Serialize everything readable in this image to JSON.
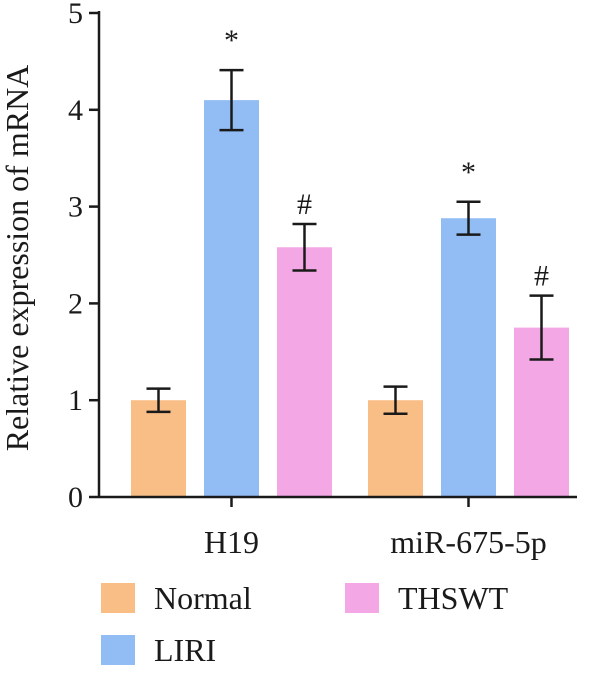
{
  "chart_data": {
    "type": "bar",
    "title": "",
    "xlabel": "",
    "ylabel": "Relative expression of mRNA",
    "ylim": [
      0,
      5
    ],
    "yticks": [
      0,
      1,
      2,
      3,
      4,
      5
    ],
    "grid": false,
    "legend_position": "bottom",
    "categories": [
      "H19",
      "miR-675-5p"
    ],
    "series": [
      {
        "name": "Normal",
        "color": "#F9BE86",
        "values": [
          1.0,
          1.0
        ],
        "errors": [
          0.12,
          0.14
        ],
        "markers": [
          "",
          ""
        ]
      },
      {
        "name": "LIRI",
        "color": "#92BDF4",
        "values": [
          4.1,
          2.88
        ],
        "errors": [
          0.31,
          0.17
        ],
        "markers": [
          "*",
          "*"
        ]
      },
      {
        "name": "THSWT",
        "color": "#F3A8E5",
        "values": [
          2.58,
          1.75
        ],
        "errors": [
          0.24,
          0.33
        ],
        "markers": [
          "#",
          "#"
        ]
      }
    ]
  }
}
